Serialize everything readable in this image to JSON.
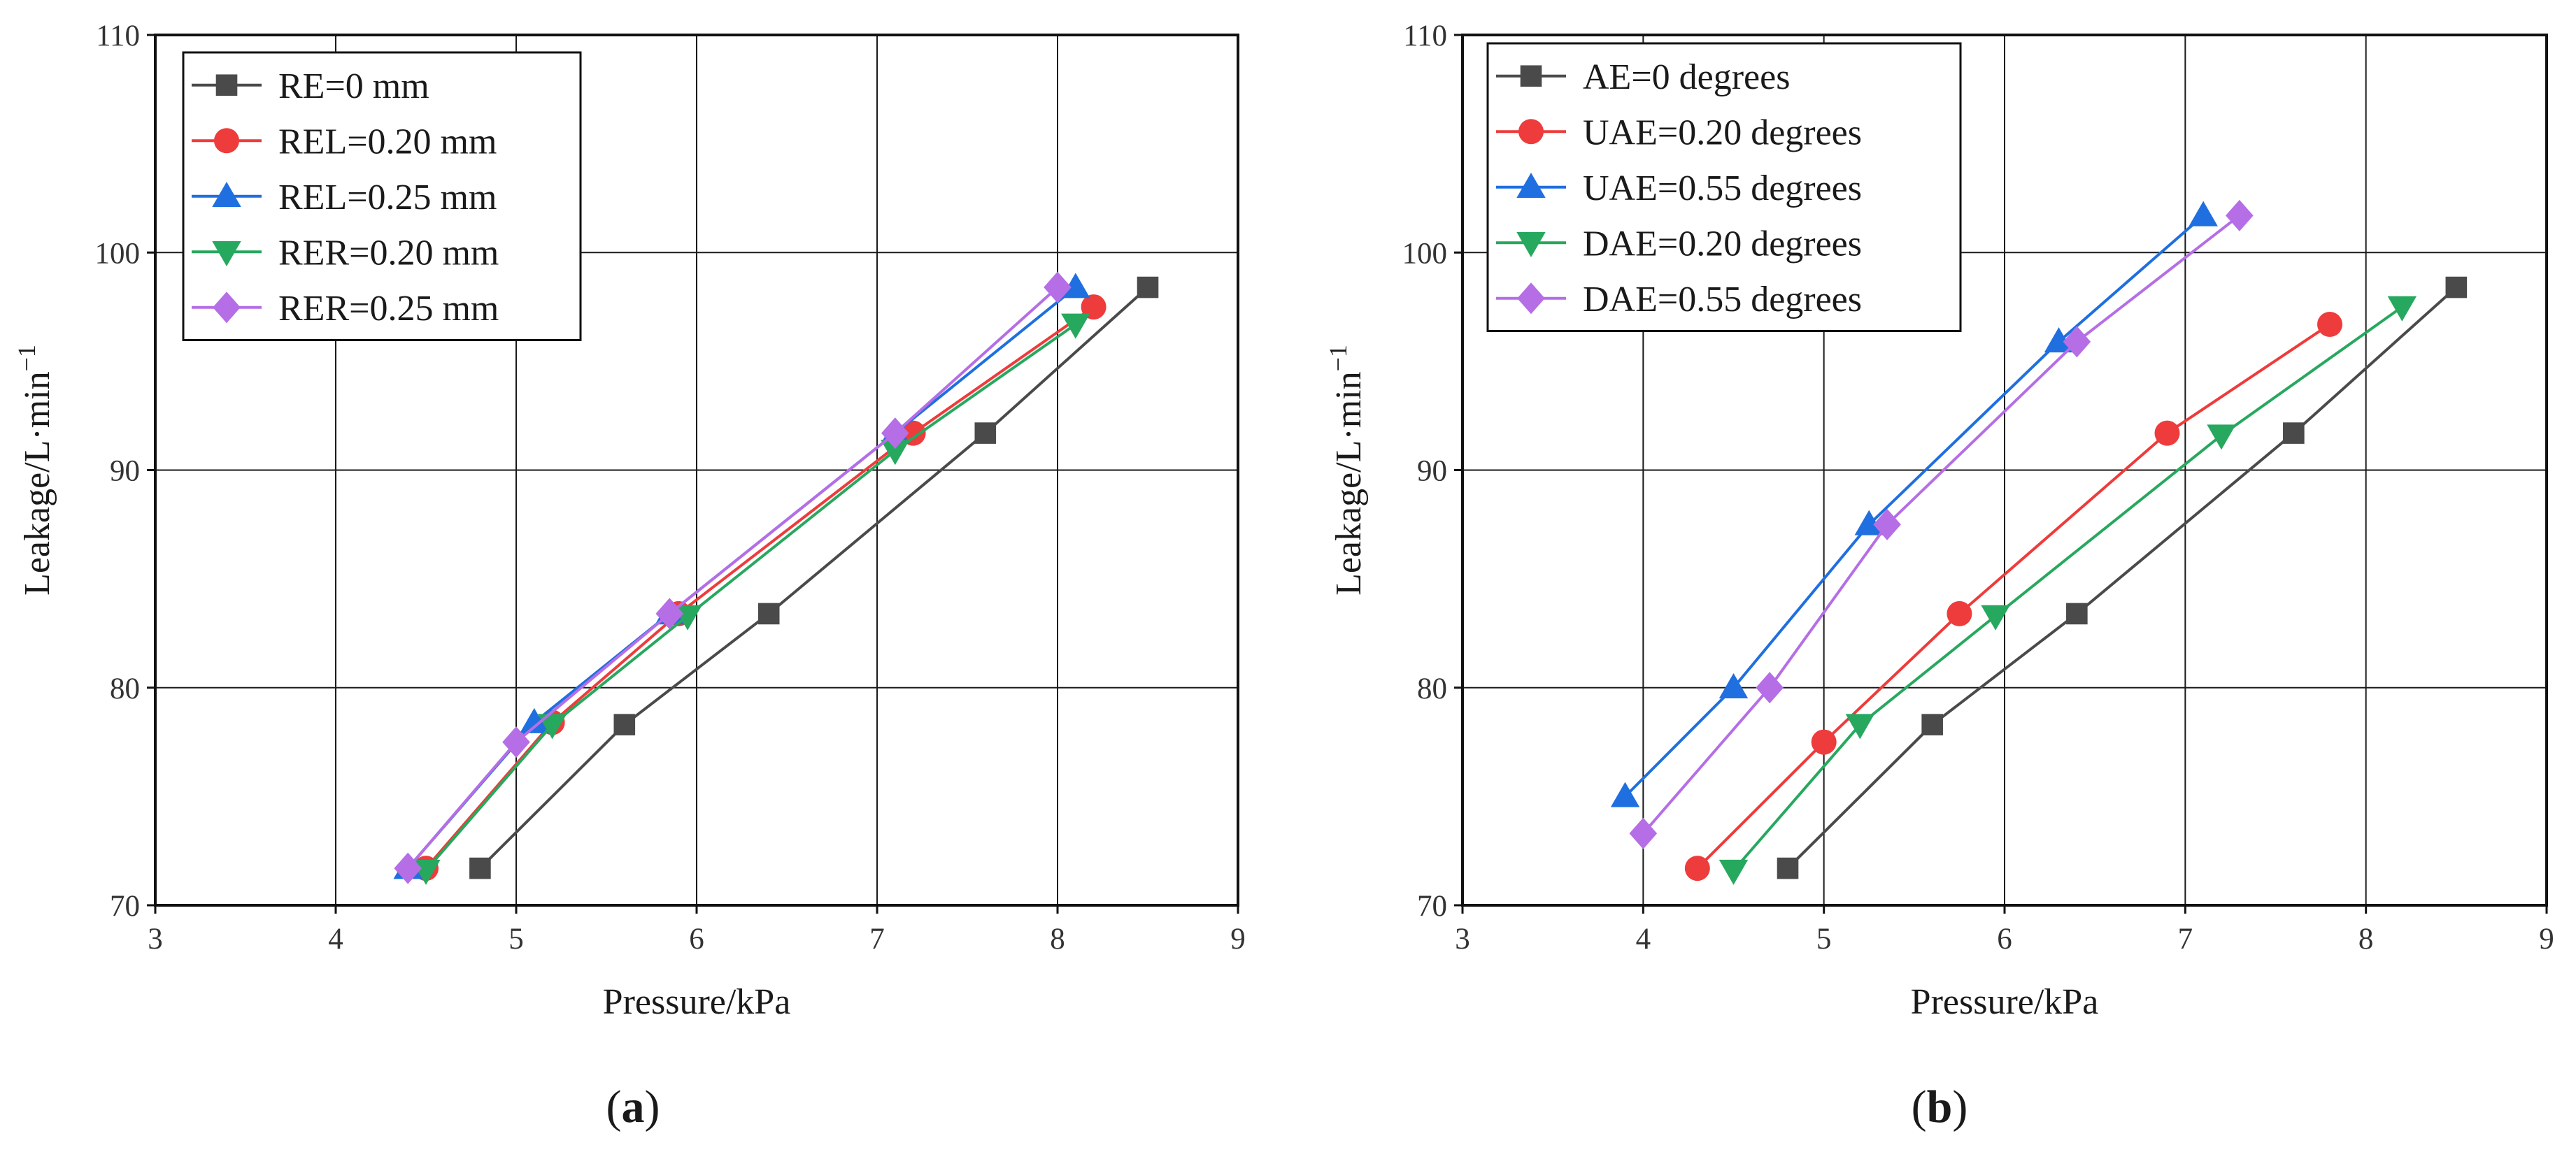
{
  "chart_data": [
    {
      "type": "line",
      "panel_label": "a",
      "xlabel": "Pressure/kPa",
      "ylabel": "Leakage/L·min",
      "ylabel_exponent": "−1",
      "xlim": [
        3,
        9
      ],
      "ylim": [
        70,
        110
      ],
      "x_ticks": [
        3,
        4,
        5,
        6,
        7,
        8,
        9
      ],
      "y_ticks": [
        70,
        80,
        90,
        100,
        110
      ],
      "grid": true,
      "legend_position": "top-left",
      "series": [
        {
          "name": "RE=0 mm",
          "color": "#4a4a4a",
          "marker": "square",
          "x": [
            4.8,
            5.6,
            6.4,
            7.6,
            8.5
          ],
          "y": [
            71.7,
            78.3,
            83.4,
            91.7,
            98.4
          ]
        },
        {
          "name": "REL=0.20 mm",
          "color": "#ee3b3b",
          "marker": "circle",
          "x": [
            4.5,
            5.2,
            5.9,
            7.2,
            8.2
          ],
          "y": [
            71.7,
            78.4,
            83.4,
            91.7,
            97.5
          ]
        },
        {
          "name": "REL=0.25 mm",
          "color": "#1f6fe0",
          "marker": "triangle-up",
          "x": [
            4.4,
            5.1,
            5.85,
            7.1,
            8.1
          ],
          "y": [
            71.7,
            78.4,
            83.4,
            91.7,
            98.4
          ]
        },
        {
          "name": "RER=0.20 mm",
          "color": "#27a85f",
          "marker": "triangle-down",
          "x": [
            4.5,
            5.2,
            5.95,
            7.1,
            8.1
          ],
          "y": [
            71.6,
            78.3,
            83.3,
            90.9,
            96.7
          ]
        },
        {
          "name": "RER=0.25 mm",
          "color": "#b56ee6",
          "marker": "diamond",
          "x": [
            4.4,
            5.0,
            5.85,
            7.1,
            8.0
          ],
          "y": [
            71.7,
            77.5,
            83.4,
            91.7,
            98.4
          ]
        }
      ]
    },
    {
      "type": "line",
      "panel_label": "b",
      "xlabel": "Pressure/kPa",
      "ylabel": "Leakage/L·min",
      "ylabel_exponent": "−1",
      "xlim": [
        3,
        9
      ],
      "ylim": [
        70,
        110
      ],
      "x_ticks": [
        3,
        4,
        5,
        6,
        7,
        8,
        9
      ],
      "y_ticks": [
        70,
        80,
        90,
        100,
        110
      ],
      "grid": true,
      "legend_position": "top-left",
      "series": [
        {
          "name": "AE=0 degrees",
          "color": "#4a4a4a",
          "marker": "square",
          "x": [
            4.8,
            5.6,
            6.4,
            7.6,
            8.5
          ],
          "y": [
            71.7,
            78.3,
            83.4,
            91.7,
            98.4
          ]
        },
        {
          "name": "UAE=0.20 degrees",
          "color": "#ee3b3b",
          "marker": "circle",
          "x": [
            4.3,
            5.0,
            5.75,
            6.9,
            7.8
          ],
          "y": [
            71.7,
            77.5,
            83.4,
            91.7,
            96.7
          ]
        },
        {
          "name": "UAE=0.55 degrees",
          "color": "#1f6fe0",
          "marker": "triangle-up",
          "x": [
            3.9,
            4.5,
            5.25,
            6.3,
            7.1
          ],
          "y": [
            75.0,
            80.0,
            87.5,
            95.9,
            101.7
          ]
        },
        {
          "name": "DAE=0.20 degrees",
          "color": "#27a85f",
          "marker": "triangle-down",
          "x": [
            4.5,
            5.2,
            5.95,
            7.2,
            8.2
          ],
          "y": [
            71.6,
            78.3,
            83.3,
            91.6,
            97.5
          ]
        },
        {
          "name": "DAE=0.55 degrees",
          "color": "#b56ee6",
          "marker": "diamond",
          "x": [
            4.0,
            4.7,
            5.35,
            6.4,
            7.3
          ],
          "y": [
            73.3,
            80.0,
            87.5,
            95.9,
            101.7
          ]
        }
      ]
    }
  ]
}
